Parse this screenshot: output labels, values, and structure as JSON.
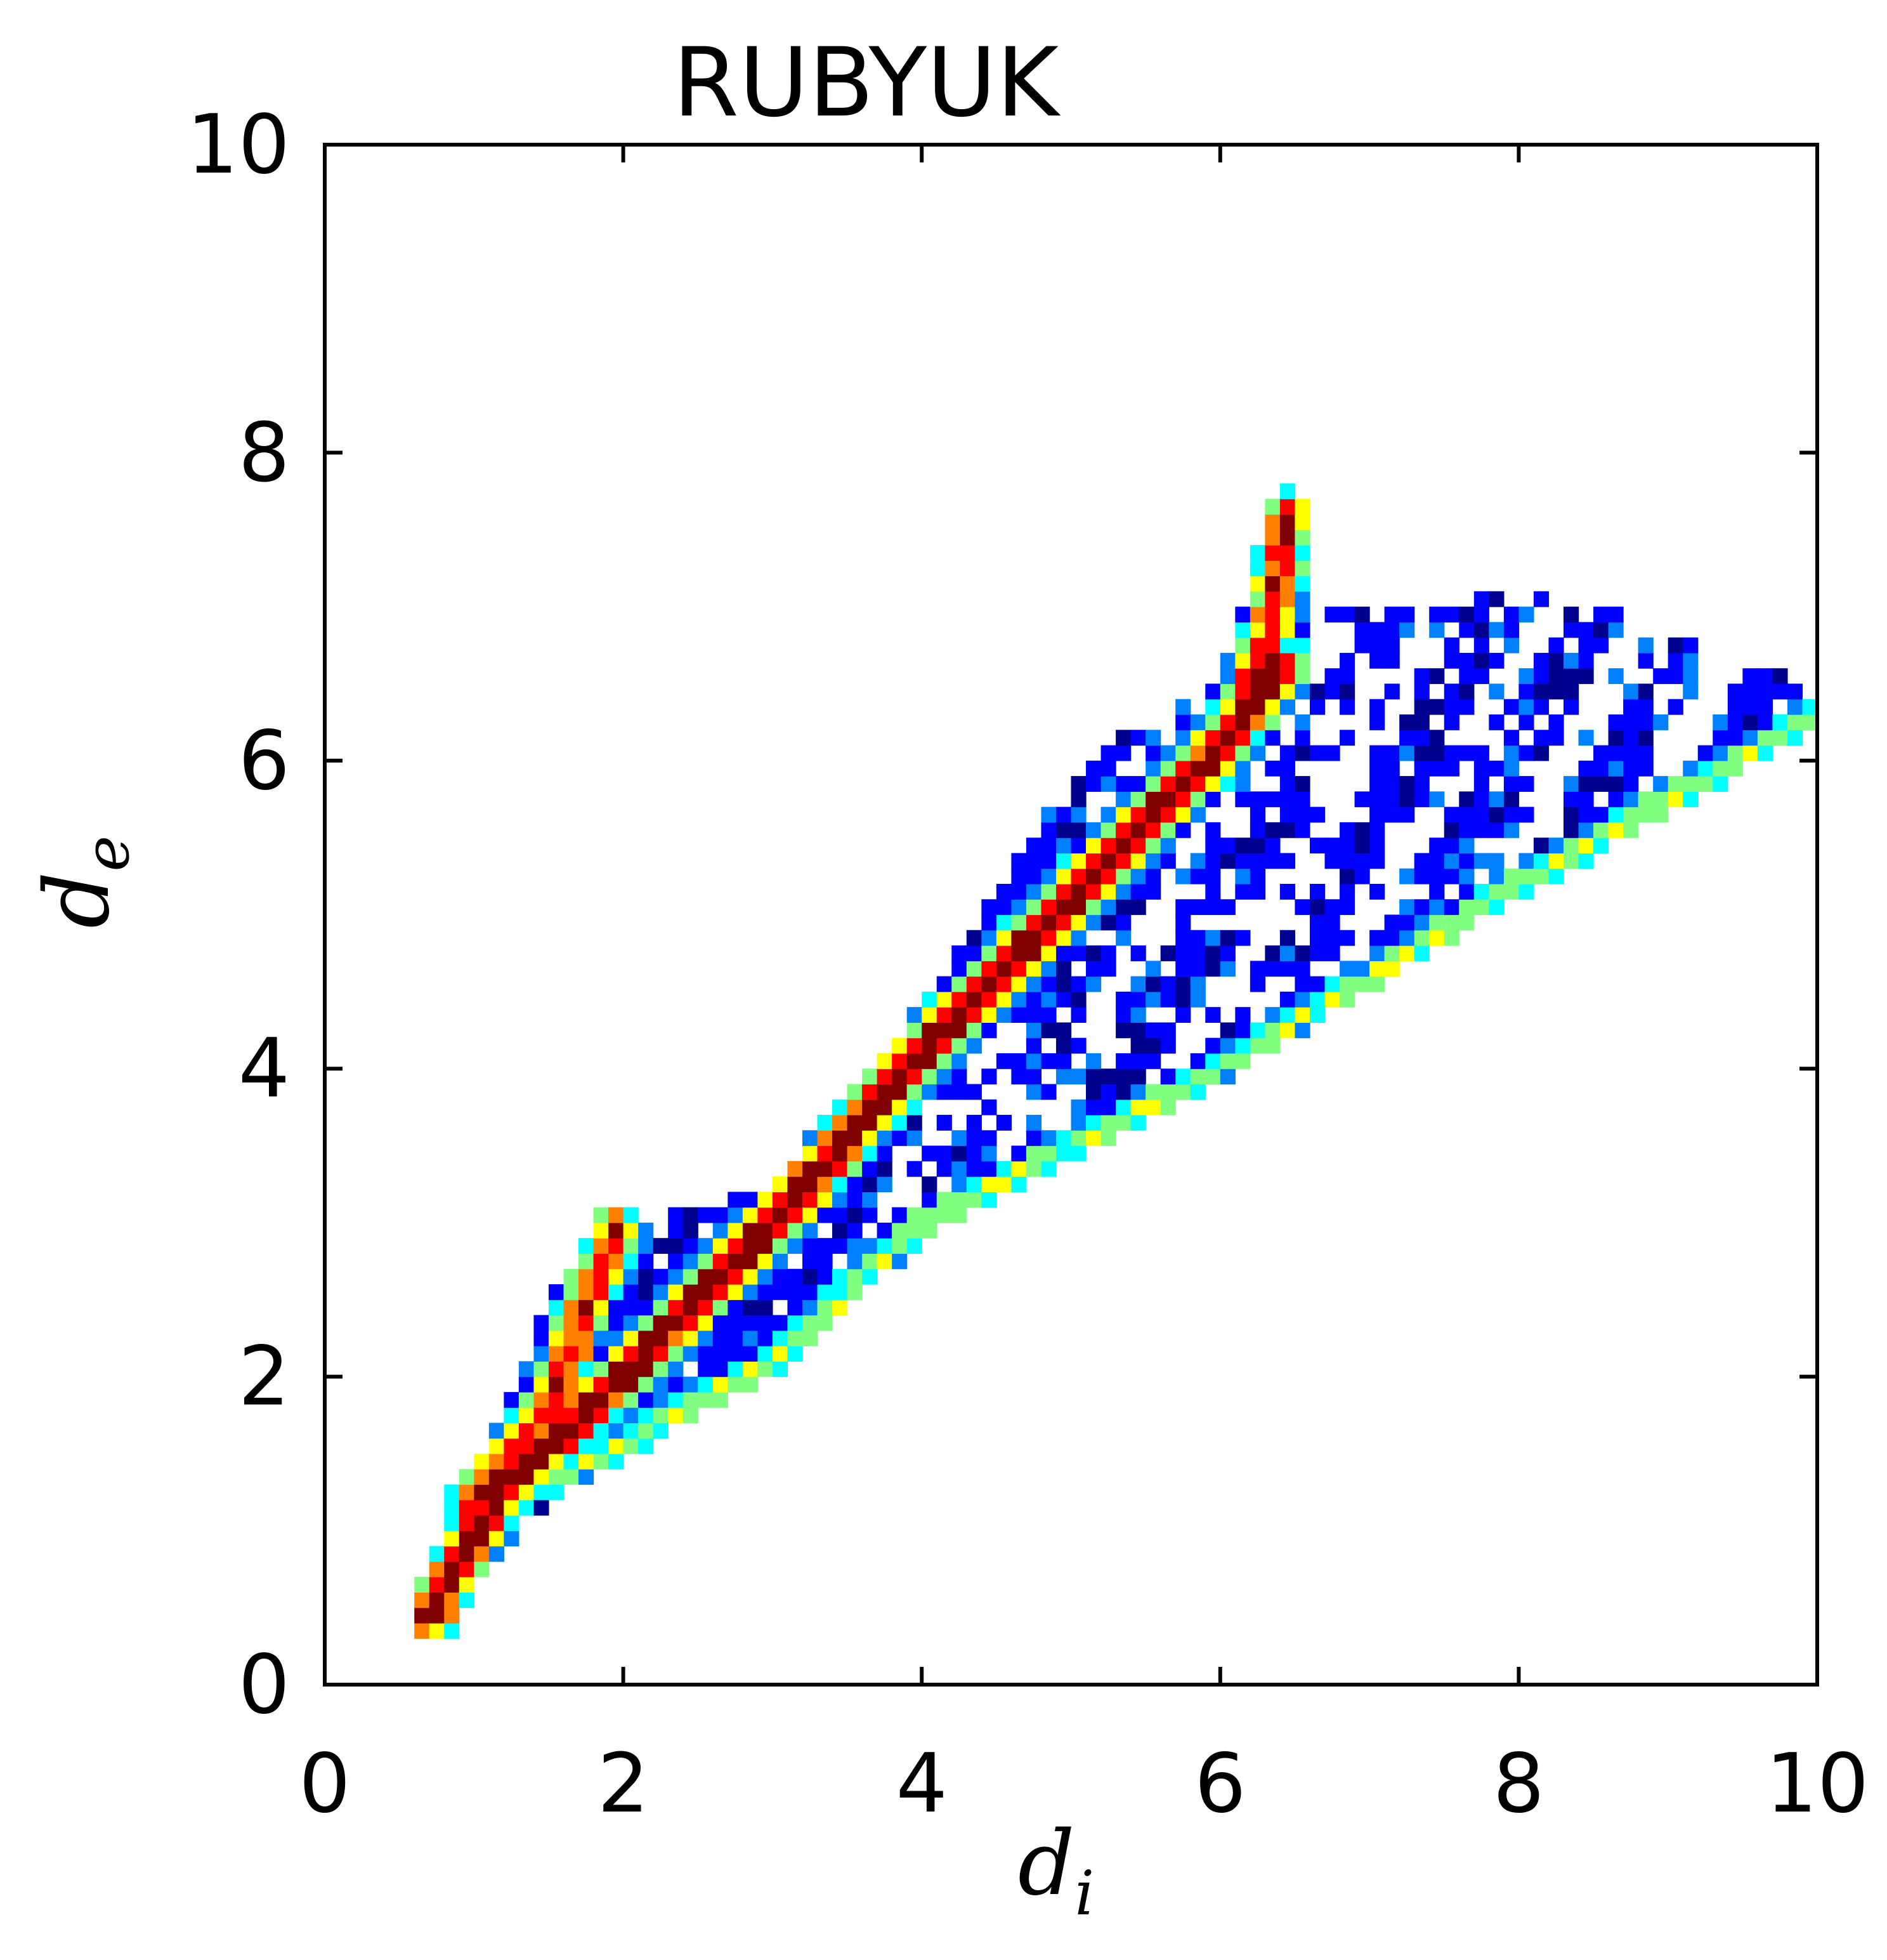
{
  "chart_data": {
    "type": "heatmap",
    "title": "RUBYUK",
    "xlabel": {
      "main": "d",
      "sub": "i"
    },
    "ylabel": {
      "main": "d",
      "sub": "e"
    },
    "xlim": [
      0,
      10
    ],
    "ylim": [
      0,
      10
    ],
    "x_ticks": [
      0,
      2,
      4,
      6,
      8,
      10
    ],
    "y_ticks": [
      0,
      2,
      4,
      6,
      8,
      10
    ],
    "x_tick_labels": [
      "0",
      "2",
      "4",
      "6",
      "8",
      "10"
    ],
    "y_tick_labels": [
      "0",
      "2",
      "4",
      "6",
      "8",
      "10"
    ],
    "grid": false,
    "colormap": "jet",
    "bin_size": 0.1,
    "colormap_colors": [
      "#00008f",
      "#0000ff",
      "#0080ff",
      "#00ffff",
      "#80ff80",
      "#ffff00",
      "#ff8000",
      "#ff0000",
      "#800000"
    ],
    "density_ridges": [
      {
        "name": "diagonal",
        "points": [
          [
            0.7,
            0.45
          ],
          [
            1.2,
            1.3
          ],
          [
            2.0,
            2.0
          ],
          [
            3.0,
            3.0
          ],
          [
            4.0,
            4.1
          ],
          [
            5.0,
            5.1
          ],
          [
            6.0,
            6.1
          ],
          [
            6.4,
            6.6
          ]
        ]
      },
      {
        "name": "upper-spur-low",
        "points": [
          [
            1.0,
            1.2
          ],
          [
            1.5,
            1.8
          ],
          [
            1.8,
            2.6
          ],
          [
            1.95,
            2.95
          ]
        ]
      },
      {
        "name": "upper-spur-high",
        "points": [
          [
            6.1,
            6.2
          ],
          [
            6.35,
            6.9
          ],
          [
            6.45,
            7.6
          ]
        ]
      },
      {
        "name": "lower-edge",
        "points": [
          [
            1.5,
            1.3
          ],
          [
            3.0,
            2.1
          ],
          [
            4.0,
            3.0
          ],
          [
            6.0,
            4.0
          ],
          [
            8.0,
            5.2
          ],
          [
            10.0,
            6.3
          ]
        ]
      }
    ],
    "region_outline": {
      "upper": [
        [
          0.7,
          0.45
        ],
        [
          1.0,
          1.2
        ],
        [
          1.5,
          2.5
        ],
        [
          2.0,
          2.95
        ],
        [
          3.0,
          3.2
        ],
        [
          4.0,
          4.4
        ],
        [
          5.0,
          5.9
        ],
        [
          6.0,
          6.6
        ],
        [
          6.45,
          7.6
        ],
        [
          6.6,
          6.95
        ],
        [
          8.0,
          7.05
        ],
        [
          8.5,
          7.0
        ],
        [
          9.5,
          6.6
        ],
        [
          10.0,
          6.5
        ]
      ],
      "lower": [
        [
          0.7,
          0.45
        ],
        [
          1.5,
          1.25
        ],
        [
          3.0,
          2.1
        ],
        [
          4.0,
          3.0
        ],
        [
          6.0,
          4.0
        ],
        [
          8.0,
          5.2
        ],
        [
          10.0,
          6.3
        ]
      ]
    }
  }
}
